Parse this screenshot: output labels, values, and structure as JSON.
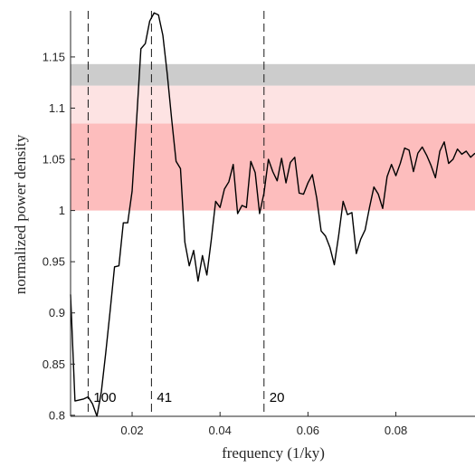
{
  "chart_data": {
    "type": "line",
    "title": "",
    "xlabel": "frequency (1/ky)",
    "ylabel": "normalized power density",
    "xlim": [
      0.006,
      0.098
    ],
    "ylim": [
      0.799,
      1.195
    ],
    "xticks": [
      0.02,
      0.04,
      0.06,
      0.08
    ],
    "xtick_labels": [
      "0.02",
      "0.04",
      "0.06",
      "0.08"
    ],
    "yticks": [
      0.8,
      0.85,
      0.9,
      0.95,
      1,
      1.05,
      1.1,
      1.15
    ],
    "ytick_labels": [
      "0.8",
      "0.85",
      "0.9",
      "0.95",
      "1",
      "1.05",
      "1.1",
      "1.15"
    ],
    "grid": false,
    "bands": [
      {
        "y0": 1.0,
        "y1": 1.085,
        "color": "#fdbdbd"
      },
      {
        "y0": 1.085,
        "y1": 1.122,
        "color": "#fde3e3"
      },
      {
        "y0": 1.122,
        "y1": 1.143,
        "color": "#cccccc"
      }
    ],
    "vlines": [
      {
        "x": 0.01,
        "label": "100"
      },
      {
        "x": 0.0244,
        "label": "41"
      },
      {
        "x": 0.05,
        "label": "20"
      }
    ],
    "series": [
      {
        "color": "#000000",
        "x": [
          0.006,
          0.007,
          0.008,
          0.009,
          0.01,
          0.011,
          0.012,
          0.013,
          0.014,
          0.015,
          0.016,
          0.017,
          0.018,
          0.019,
          0.02,
          0.021,
          0.022,
          0.023,
          0.024,
          0.025,
          0.026,
          0.027,
          0.028,
          0.029,
          0.03,
          0.031,
          0.032,
          0.033,
          0.034,
          0.035,
          0.036,
          0.037,
          0.038,
          0.039,
          0.04,
          0.041,
          0.042,
          0.043,
          0.044,
          0.045,
          0.046,
          0.047,
          0.048,
          0.049,
          0.05,
          0.051,
          0.052,
          0.053,
          0.054,
          0.055,
          0.056,
          0.057,
          0.058,
          0.059,
          0.06,
          0.061,
          0.062,
          0.063,
          0.064,
          0.065,
          0.066,
          0.067,
          0.068,
          0.069,
          0.07,
          0.071,
          0.072,
          0.073,
          0.074,
          0.075,
          0.076,
          0.077,
          0.078,
          0.079,
          0.08,
          0.081,
          0.082,
          0.083,
          0.084,
          0.085,
          0.086,
          0.087,
          0.088,
          0.089,
          0.09,
          0.091,
          0.092,
          0.093,
          0.094,
          0.095,
          0.096,
          0.097,
          0.098
        ],
        "y": [
          0.918,
          0.814,
          0.815,
          0.816,
          0.818,
          0.811,
          0.799,
          0.823,
          0.861,
          0.902,
          0.945,
          0.946,
          0.988,
          0.988,
          1.019,
          1.087,
          1.158,
          1.163,
          1.185,
          1.193,
          1.191,
          1.171,
          1.133,
          1.089,
          1.048,
          1.041,
          0.969,
          0.946,
          0.961,
          0.931,
          0.956,
          0.937,
          0.971,
          1.009,
          1.003,
          1.021,
          1.028,
          1.045,
          0.997,
          1.005,
          1.003,
          1.048,
          1.037,
          0.997,
          1.017,
          1.05,
          1.038,
          1.029,
          1.051,
          1.027,
          1.047,
          1.052,
          1.017,
          1.016,
          1.027,
          1.035,
          1.012,
          0.98,
          0.975,
          0.964,
          0.947,
          0.976,
          1.009,
          0.996,
          0.998,
          0.958,
          0.972,
          0.981,
          1.003,
          1.023,
          1.016,
          1.002,
          1.033,
          1.045,
          1.034,
          1.046,
          1.061,
          1.059,
          1.038,
          1.056,
          1.062,
          1.054,
          1.044,
          1.032,
          1.058,
          1.067,
          1.046,
          1.05,
          1.06,
          1.055,
          1.058,
          1.052,
          1.056
        ]
      }
    ]
  }
}
